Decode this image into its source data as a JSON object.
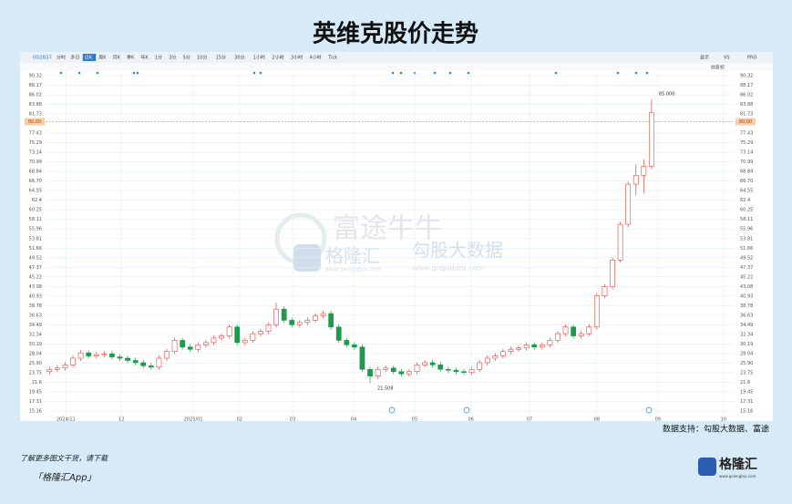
{
  "header": {
    "title": "英维克股价走势"
  },
  "toolbar": {
    "code": "002837",
    "tabs": [
      "分时",
      "多日",
      "日K",
      "周K",
      "月K",
      "季K",
      "年K",
      "1分",
      "3分",
      "5分",
      "10分",
      "15分",
      "30分",
      "1小时",
      "2小时",
      "3小时",
      "4小时",
      "Tick"
    ],
    "right": [
      "显示",
      "VS",
      "PRO"
    ],
    "adjust": "前复权"
  },
  "watermark": {
    "futu": "富途牛牛",
    "glh": "格隆汇",
    "glh_url": "www.gelonghui.com",
    "gogu": "勾股大数据",
    "gogu_url": "www.gogudata.com"
  },
  "chart_data": {
    "type": "candlestick",
    "categories": [
      null,
      null,
      null,
      null,
      null,
      null,
      null,
      null,
      null,
      null,
      null,
      null,
      null,
      null,
      null,
      null,
      null,
      null,
      null,
      null,
      null,
      null,
      null,
      null,
      null,
      null,
      null,
      null,
      null,
      null,
      null,
      null,
      null,
      null,
      null,
      null,
      null,
      null,
      null,
      null,
      null,
      null,
      null,
      null,
      null,
      null,
      null,
      null,
      null,
      null,
      null,
      null,
      null,
      null,
      null,
      null,
      null,
      null,
      null,
      null,
      null,
      null,
      null,
      null,
      null,
      null,
      null,
      null,
      null,
      null,
      null,
      null,
      null,
      null,
      null,
      null,
      null,
      null
    ],
    "open": [
      24.0,
      24.5,
      24.8,
      25.5,
      27,
      28.2,
      27.5,
      27.8,
      28,
      27.3,
      27,
      26.5,
      26,
      25.3,
      25,
      27,
      28.5,
      31,
      29.5,
      29,
      30,
      30.5,
      31.5,
      32,
      34,
      30.5,
      31,
      32.5,
      33,
      34.5,
      38,
      35.5,
      34.5,
      35,
      35.5,
      36.5,
      37,
      34,
      31,
      30,
      29.5,
      24.5,
      23,
      24.5,
      24.8,
      24,
      23.5,
      24,
      25.5,
      26,
      25.5,
      24.5,
      24.3,
      24,
      23.8,
      24.5,
      26,
      27,
      27.5,
      28.5,
      29,
      29.3,
      30,
      29.5,
      30,
      31,
      32.5,
      34,
      32,
      32.5,
      34,
      41,
      43,
      49,
      57,
      66,
      68,
      70
    ],
    "high": [
      25.1,
      25.4,
      26.1,
      27.6,
      28.8,
      28.8,
      28.4,
      28.6,
      28.6,
      27.9,
      27.6,
      27.1,
      26.6,
      25.9,
      27.6,
      29.1,
      31.6,
      31.6,
      30.1,
      30.6,
      31.1,
      32.1,
      32.6,
      34.6,
      34.6,
      31.6,
      33.1,
      33.6,
      35.1,
      39.5,
      38.6,
      36.1,
      35.6,
      36.1,
      37.1,
      37.6,
      37.6,
      34.6,
      31.6,
      30.6,
      30.1,
      25.1,
      25.1,
      25.4,
      25.4,
      24.6,
      24.6,
      26.1,
      26.6,
      26.6,
      26.1,
      25.1,
      24.9,
      24.6,
      25.1,
      26.6,
      27.6,
      28.1,
      29.1,
      29.6,
      29.9,
      30.6,
      30.6,
      30.6,
      31.6,
      33.1,
      34.6,
      34.6,
      33.1,
      34.6,
      41.6,
      43.6,
      49.6,
      57.6,
      66.6,
      70.5,
      71.5,
      85
    ],
    "low": [
      23.4,
      23.9,
      24.2,
      24.9,
      26.4,
      26.9,
      26.9,
      27.2,
      26.7,
      26.4,
      25.9,
      25.4,
      24.7,
      24.4,
      24.4,
      26.4,
      27.9,
      28.9,
      28.4,
      28.4,
      29.4,
      29.9,
      30.9,
      31.4,
      29.9,
      29.9,
      30.4,
      31.9,
      32.4,
      33.9,
      34.9,
      33.9,
      33.9,
      34.4,
      34.9,
      35.9,
      33.4,
      30.4,
      29.4,
      28.9,
      23.9,
      21.508,
      22.4,
      23.9,
      23.4,
      22.9,
      22.9,
      23.4,
      24.9,
      24.9,
      23.9,
      23.7,
      23.4,
      23.2,
      23.2,
      23.9,
      25.4,
      26.4,
      26.9,
      27.9,
      28.4,
      28.7,
      28.9,
      28.9,
      29.4,
      30.4,
      31.9,
      31.4,
      31.4,
      31.9,
      33.4,
      40.4,
      42.4,
      48.4,
      56.4,
      63.5,
      64,
      69.4
    ],
    "close": [
      24.5,
      24.8,
      25.5,
      27,
      28.2,
      27.5,
      27.8,
      28,
      27.3,
      27,
      26.5,
      26,
      25.3,
      25,
      27,
      28.5,
      31,
      29.5,
      29,
      30,
      30.5,
      31.5,
      32,
      34,
      30.5,
      31,
      32.5,
      33,
      34.5,
      38,
      35.5,
      34.5,
      35,
      35.5,
      36.5,
      37,
      34,
      31,
      30,
      29.5,
      24.5,
      23,
      24.5,
      24.8,
      24,
      23.5,
      24,
      25.5,
      26,
      25.5,
      24.5,
      24.3,
      24,
      23.8,
      24.5,
      26,
      27,
      27.5,
      28.5,
      29,
      29.3,
      30,
      29.5,
      30,
      31,
      32.5,
      34,
      32,
      32.5,
      34,
      41,
      43,
      49,
      57,
      66,
      68,
      70,
      82
    ],
    "up_color": "#e8473f",
    "down_color": "#1d9a4c",
    "annotations": [
      {
        "value": 85,
        "label": "85.000"
      },
      {
        "value": 21.508,
        "label": "21.508"
      }
    ],
    "price_line": {
      "value": 80,
      "label": "80.00"
    },
    "xlim": [
      0,
      88
    ],
    "xticks": [
      {
        "value": 2.6,
        "label": "2024/11"
      },
      {
        "value": 9.7,
        "label": "12"
      },
      {
        "value": 18.9,
        "label": "2025/01"
      },
      {
        "value": 24.8,
        "label": "02"
      },
      {
        "value": 31.6,
        "label": "03"
      },
      {
        "value": 39.4,
        "label": "04"
      },
      {
        "value": 47.2,
        "label": "05"
      },
      {
        "value": 54.4,
        "label": "06"
      },
      {
        "value": 61.9,
        "label": "07"
      },
      {
        "value": 70.5,
        "label": "08"
      },
      {
        "value": 78.3,
        "label": "09"
      },
      {
        "value": 86.7,
        "label": "10"
      }
    ],
    "ylim": [
      15.16,
      90.32
    ],
    "yticks": [
      15.16,
      17.31,
      19.45,
      21.6,
      {
        "value": 23.75,
        "label": "23.75"
      },
      {
        "value": 25.9,
        "label": "25.90"
      },
      28.04,
      30.19,
      32.34,
      34.49,
      36.63,
      38.78,
      40.93,
      43.08,
      45.22,
      47.37,
      49.52,
      51.66,
      53.81,
      55.96,
      58.11,
      60.25,
      62.4,
      64.55,
      {
        "value": 66.7,
        "label": "66.70"
      },
      68.84,
      70.99,
      73.14,
      75.29,
      77.43,
      81.73,
      83.88,
      86.02,
      88.17,
      90.32
    ],
    "grid": true
  },
  "footer": {
    "source": "数据支持：勾股大数据、富途",
    "promo": "了解更多图文干货，请下载",
    "app": "「格隆汇App」",
    "logo": "格隆汇",
    "logo_url": "www.gelonghui.com"
  }
}
